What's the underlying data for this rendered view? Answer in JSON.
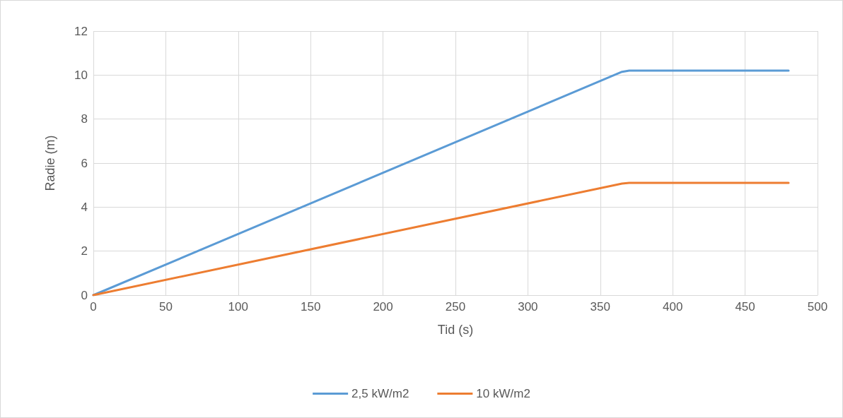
{
  "chart_data": {
    "type": "line",
    "xlabel": "Tid (s)",
    "ylabel": "Radie (m)",
    "xlim": [
      0,
      500
    ],
    "xticks": [
      0,
      50,
      100,
      150,
      200,
      250,
      300,
      350,
      400,
      450,
      500
    ],
    "ylim": [
      0,
      12
    ],
    "yticks": [
      0,
      2,
      4,
      6,
      8,
      10,
      12
    ],
    "grid": true,
    "legend": "bottom",
    "marker": "none",
    "line_style": "solid",
    "series": [
      {
        "name": "2,5 kW/m2",
        "color": "#5b9bd5",
        "x": [
          0,
          365,
          370,
          480
        ],
        "values": [
          0,
          10.15,
          10.2,
          10.2
        ]
      },
      {
        "name": "10 kW/m2",
        "color": "#ed7d31",
        "x": [
          0,
          365,
          370,
          480
        ],
        "values": [
          0,
          5.07,
          5.1,
          5.1
        ]
      }
    ]
  }
}
